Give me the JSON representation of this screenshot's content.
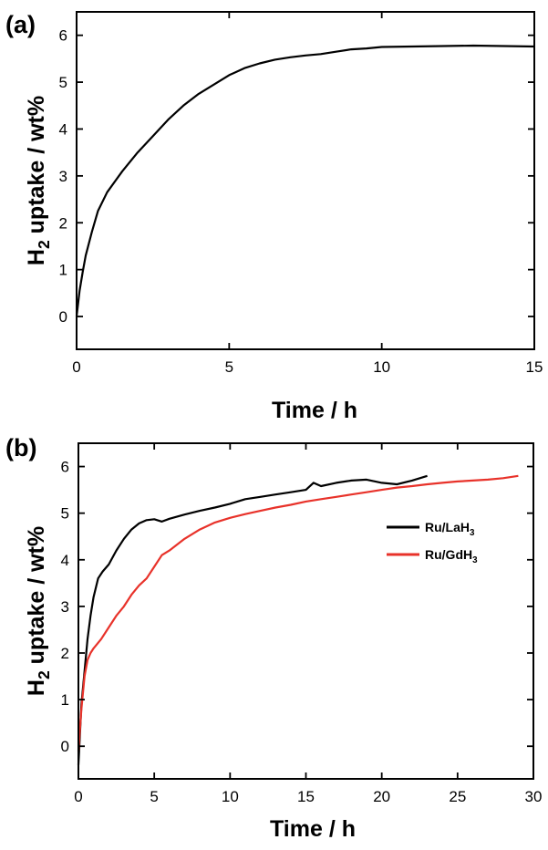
{
  "chart_data": [
    {
      "type": "line",
      "panel_label": "(a)",
      "xlabel": "Time / h",
      "ylabel_main": "H",
      "ylabel_sub": "2",
      "ylabel_rest": " uptake / wt%",
      "xlim": [
        0,
        15
      ],
      "ylim": [
        -0.7,
        6.5
      ],
      "xticks": [
        0,
        5,
        10,
        15
      ],
      "yticks": [
        0,
        1,
        2,
        3,
        4,
        5,
        6
      ],
      "grid": false,
      "series": [
        {
          "color": "#000000",
          "x": [
            0,
            0.1,
            0.2,
            0.3,
            0.5,
            0.7,
            1.0,
            1.5,
            2.0,
            2.5,
            3.0,
            3.5,
            4.0,
            4.5,
            5.0,
            5.5,
            6.0,
            6.5,
            7.0,
            7.5,
            8.0,
            8.5,
            9.0,
            9.5,
            10.0,
            11.0,
            12.0,
            13.0,
            14.0,
            15.0
          ],
          "y": [
            0.0,
            0.55,
            0.95,
            1.3,
            1.8,
            2.25,
            2.65,
            3.1,
            3.5,
            3.85,
            4.2,
            4.5,
            4.75,
            4.95,
            5.15,
            5.3,
            5.4,
            5.48,
            5.53,
            5.57,
            5.6,
            5.65,
            5.7,
            5.72,
            5.75,
            5.76,
            5.77,
            5.78,
            5.77,
            5.76
          ]
        }
      ]
    },
    {
      "type": "line",
      "panel_label": "(b)",
      "xlabel": "Time / h",
      "ylabel_main": "H",
      "ylabel_sub": "2",
      "ylabel_rest": " uptake / wt%",
      "xlim": [
        0,
        30
      ],
      "ylim": [
        -0.7,
        6.5
      ],
      "xticks": [
        0,
        5,
        10,
        15,
        20,
        25,
        30
      ],
      "yticks": [
        0,
        1,
        2,
        3,
        4,
        5,
        6
      ],
      "grid": false,
      "legend_position": "right",
      "series": [
        {
          "name": "Ru/LaH",
          "name_sub": "3",
          "color": "#000000",
          "x": [
            0,
            0.2,
            0.4,
            0.6,
            0.8,
            1.0,
            1.3,
            1.6,
            2.0,
            2.5,
            3.0,
            3.5,
            4.0,
            4.5,
            5.0,
            5.5,
            6.0,
            7.0,
            8.0,
            9.0,
            10.0,
            11.0,
            12.0,
            13.0,
            14.0,
            15.0,
            15.5,
            16.0,
            17.0,
            18.0,
            19.0,
            20.0,
            21.0,
            22.0,
            23.0
          ],
          "y": [
            -0.4,
            0.9,
            1.6,
            2.3,
            2.8,
            3.2,
            3.6,
            3.75,
            3.9,
            4.2,
            4.45,
            4.65,
            4.78,
            4.85,
            4.87,
            4.82,
            4.88,
            4.97,
            5.05,
            5.12,
            5.2,
            5.3,
            5.35,
            5.4,
            5.45,
            5.5,
            5.65,
            5.58,
            5.65,
            5.7,
            5.72,
            5.65,
            5.62,
            5.7,
            5.8
          ]
        },
        {
          "name": "Ru/GdH",
          "name_sub": "3",
          "color": "#e8322a",
          "x": [
            0,
            0.2,
            0.4,
            0.6,
            0.8,
            1.0,
            1.5,
            2.0,
            2.5,
            3.0,
            3.5,
            4.0,
            4.5,
            5.0,
            5.5,
            6.0,
            7.0,
            8.0,
            9.0,
            10.0,
            11.0,
            12.0,
            13.0,
            14.0,
            15.0,
            16.0,
            17.0,
            18.0,
            19.0,
            20.0,
            21.0,
            22.0,
            23.0,
            24.0,
            25.0,
            26.0,
            27.0,
            28.0,
            29.0
          ],
          "y": [
            -0.1,
            0.8,
            1.5,
            1.85,
            2.0,
            2.1,
            2.3,
            2.55,
            2.8,
            3.0,
            3.25,
            3.45,
            3.6,
            3.85,
            4.1,
            4.2,
            4.45,
            4.65,
            4.8,
            4.9,
            4.98,
            5.05,
            5.12,
            5.18,
            5.25,
            5.3,
            5.35,
            5.4,
            5.45,
            5.5,
            5.55,
            5.58,
            5.62,
            5.65,
            5.68,
            5.7,
            5.72,
            5.75,
            5.8
          ]
        }
      ]
    }
  ]
}
